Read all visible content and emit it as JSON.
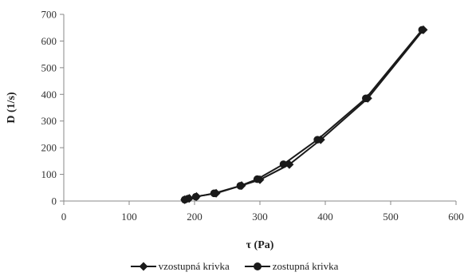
{
  "chart_data": {
    "type": "line",
    "xlabel": "τ (Pa)",
    "ylabel": "D (1/s)",
    "xlim": [
      0,
      600
    ],
    "ylim": [
      0,
      700
    ],
    "xticks": [
      0,
      100,
      200,
      300,
      400,
      500,
      600
    ],
    "yticks": [
      0,
      100,
      200,
      300,
      400,
      500,
      600,
      700
    ],
    "grid": false,
    "legend": "bottom",
    "colors": {
      "line": "#1a1a1a",
      "axis": "#888888"
    },
    "series": [
      {
        "name": "vzostupná krivka",
        "marker": "diamond",
        "x": [
          185,
          192,
          203,
          233,
          272,
          300,
          345,
          393,
          465,
          550
        ],
        "y": [
          5,
          10,
          17,
          29,
          58,
          80,
          137,
          230,
          385,
          642
        ]
      },
      {
        "name": "zostupná krivka",
        "marker": "circle",
        "x": [
          185,
          190,
          202,
          230,
          270,
          296,
          336,
          388,
          462,
          548
        ],
        "y": [
          5,
          9,
          16,
          29,
          57,
          82,
          138,
          230,
          385,
          642
        ]
      }
    ]
  }
}
